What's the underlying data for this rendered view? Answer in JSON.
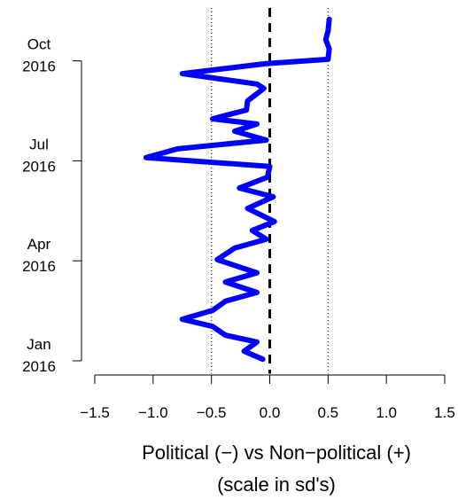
{
  "chart_data": {
    "type": "line",
    "xlabel": [
      "Political (−) vs Non−political (+)",
      "(scale in sd's)"
    ],
    "xlim": [
      -1.5,
      1.5
    ],
    "xticks": [
      {
        "value": -1.5,
        "label": "−1.5"
      },
      {
        "value": -1,
        "label": "−1.0"
      },
      {
        "value": -0.5,
        "label": "−0.5"
      },
      {
        "value": 0,
        "label": "0.0"
      },
      0.5,
      {
        "value": 1,
        "label": "1.0"
      },
      1.5
    ],
    "ylim": [
      2015.99,
      2016.86
    ],
    "yticks": [
      {
        "value": 2016,
        "label": "Jan 2016"
      },
      {
        "value": 2016.25,
        "label": "Apr 2016"
      },
      {
        "value": 2016.5,
        "label": "Jul 2016"
      },
      {
        "value": 2016.75,
        "label": "Oct 2016"
      }
    ],
    "vlines": [
      {
        "value": -0.5,
        "style": "dotted"
      },
      {
        "value": 0,
        "style": "dashed"
      },
      {
        "value": 0.5,
        "style": "dotted"
      }
    ],
    "series": [
      {
        "color": "#0000ff",
        "dates": [
          2016.004,
          2016.024,
          2016.047,
          2016.064,
          2016.086,
          2016.104,
          2016.126,
          2016.149,
          2016.171,
          2016.197,
          2016.22,
          2016.253,
          2016.282,
          2016.304,
          2016.326,
          2016.348,
          2016.381,
          2016.41,
          2016.432,
          2016.459,
          2016.486,
          2016.508,
          2016.53,
          2016.552,
          2016.574,
          2016.592,
          2016.605,
          2016.627,
          2016.65,
          2016.681,
          2016.692,
          2016.718,
          2016.743,
          2016.754,
          2016.78,
          2016.803,
          2016.825,
          2016.854
        ],
        "values": [
          -0.06,
          -0.22,
          -0.11,
          -0.38,
          -0.49,
          -0.75,
          -0.49,
          -0.38,
          -0.11,
          -0.38,
          -0.11,
          -0.45,
          -0.3,
          -0.03,
          -0.15,
          0.04,
          -0.19,
          0.03,
          -0.26,
          -0.02,
          0.0,
          -1.06,
          -0.79,
          -0.03,
          -0.3,
          -0.11,
          -0.49,
          -0.2,
          -0.19,
          -0.05,
          -0.11,
          -0.75,
          -0.03,
          0.5,
          0.51,
          0.48,
          0.5,
          0.51
        ]
      }
    ]
  }
}
